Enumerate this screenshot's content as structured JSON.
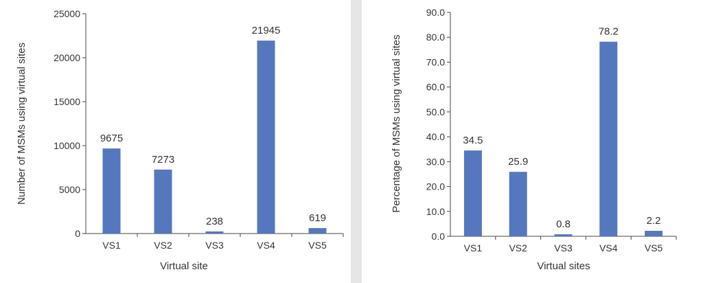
{
  "chart_data": [
    {
      "type": "bar",
      "categories": [
        "VS1",
        "VS2",
        "VS3",
        "VS4",
        "VS5"
      ],
      "values": [
        9675,
        7273,
        238,
        21945,
        619
      ],
      "data_labels": [
        "9675",
        "7273",
        "238",
        "21945",
        "619"
      ],
      "xlabel": "Virtual site",
      "ylabel": "Number of MSMs using virtual sites",
      "ylim": [
        0,
        25000
      ],
      "yticks": [
        0,
        5000,
        10000,
        15000,
        20000,
        25000
      ],
      "ytick_labels": [
        "0",
        "5000",
        "10000",
        "15000",
        "20000",
        "25000"
      ],
      "bar_color": "#5577bd",
      "grid": false
    },
    {
      "type": "bar",
      "categories": [
        "VS1",
        "VS2",
        "VS3",
        "VS4",
        "VS5"
      ],
      "values": [
        34.5,
        25.9,
        0.8,
        78.2,
        2.2
      ],
      "data_labels": [
        "34.5",
        "25.9",
        "0.8",
        "78.2",
        "2.2"
      ],
      "xlabel": "Virtual sites",
      "ylabel": "Percentage of MSMs using virtual sites",
      "ylim": [
        0,
        90
      ],
      "yticks": [
        0,
        10,
        20,
        30,
        40,
        50,
        60,
        70,
        80,
        90
      ],
      "ytick_labels": [
        "0.0",
        "10.0",
        "20.0",
        "30.0",
        "40.0",
        "50.0",
        "60.0",
        "70.0",
        "80.0",
        "90.0"
      ],
      "bar_color": "#5577bd",
      "grid": false
    }
  ]
}
